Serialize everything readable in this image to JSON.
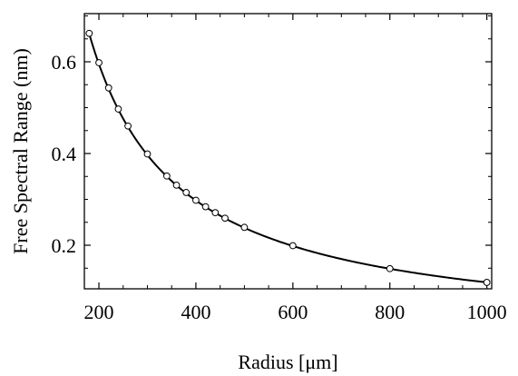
{
  "chart_data": {
    "type": "line",
    "title": "",
    "xlabel": "Radius [μm]",
    "ylabel": "Free Spectral Range (nm)",
    "xlim": [
      170,
      1010
    ],
    "ylim": [
      0.105,
      0.705
    ],
    "x_ticks": [
      200,
      400,
      600,
      800,
      1000
    ],
    "y_ticks": [
      0.2,
      0.4,
      0.6
    ],
    "grid": false,
    "curve_constant": 119,
    "series": [
      {
        "type": "scatter",
        "marker": "open-circle",
        "x": [
          180,
          200,
          220,
          240,
          260,
          300,
          340,
          360,
          380,
          400,
          420,
          440,
          460,
          500,
          600,
          800,
          1000
        ],
        "y": [
          0.662,
          0.598,
          0.543,
          0.497,
          0.46,
          0.399,
          0.351,
          0.331,
          0.315,
          0.298,
          0.284,
          0.271,
          0.259,
          0.239,
          0.199,
          0.149,
          0.119
        ]
      }
    ]
  }
}
